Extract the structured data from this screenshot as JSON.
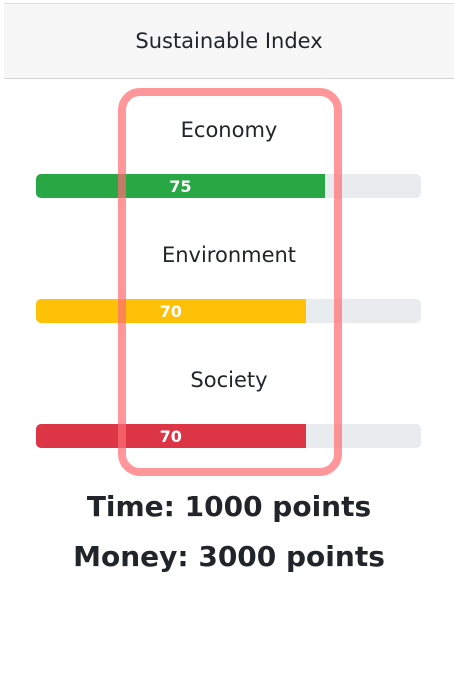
{
  "header": {
    "title": "Sustainable Index"
  },
  "indices": [
    {
      "label": "Economy",
      "value": 75,
      "display": "75",
      "fill_percent": 75,
      "color": "#28a745"
    },
    {
      "label": "Environment",
      "value": 70,
      "display": "70",
      "fill_percent": 70,
      "color": "#ffc107"
    },
    {
      "label": "Society",
      "value": 70,
      "display": "70",
      "fill_percent": 70,
      "color": "#dc3545"
    }
  ],
  "stats": {
    "time": "Time: 1000 points",
    "money": "Money: 3000 points"
  },
  "colors": {
    "track": "#e9ecef",
    "highlight": "#ff6e73"
  }
}
